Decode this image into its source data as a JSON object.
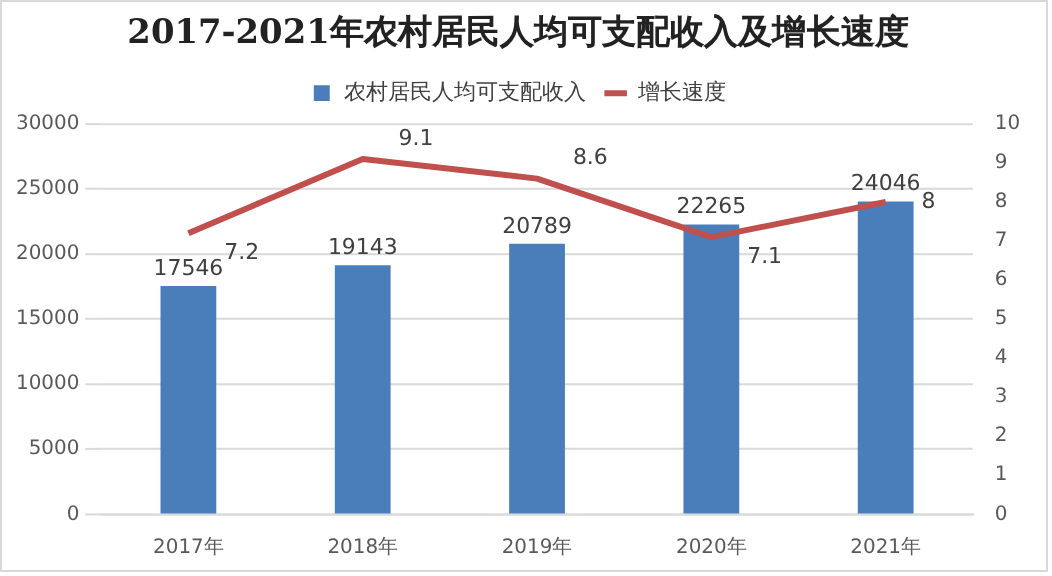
{
  "chart_data": {
    "type": "bar",
    "title": "2017-2021年农村居民人均可支配收入及增长速度",
    "categories": [
      "2017年",
      "2018年",
      "2019年",
      "2020年",
      "2021年"
    ],
    "series": [
      {
        "name": "农村居民人均可支配收入",
        "type": "bar",
        "color": "#4a7ebb",
        "values": [
          17546,
          19143,
          20789,
          22265,
          24046
        ]
      },
      {
        "name": "增长速度",
        "type": "line",
        "axis": "y2",
        "color": "#c0504d",
        "values": [
          7.2,
          9.1,
          8.6,
          7.1,
          8
        ]
      }
    ],
    "ylim": [
      0,
      30000
    ],
    "yticks": [
      0,
      5000,
      10000,
      15000,
      20000,
      25000,
      30000
    ],
    "y2lim": [
      0,
      10
    ],
    "y2ticks": [
      0,
      1,
      2,
      3,
      4,
      5,
      6,
      7,
      8,
      9,
      10
    ],
    "grid": "y",
    "legend": "top",
    "data_labels": true,
    "marker": "none",
    "line_style": "solid"
  }
}
